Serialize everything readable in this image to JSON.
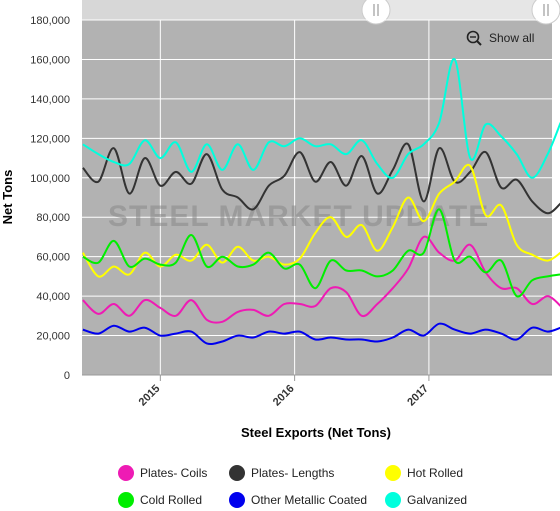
{
  "chart_data": {
    "type": "line",
    "xlabel": "Steel Exports (Net Tons)",
    "ylabel": "Net Tons",
    "ylim": [
      0,
      180000
    ],
    "yticks": [
      0,
      20000,
      40000,
      60000,
      80000,
      100000,
      120000,
      140000,
      160000,
      180000
    ],
    "yticklabels": [
      "0",
      "20,000",
      "40,000",
      "60,000",
      "80,000",
      "100,000",
      "120,000",
      "140,000",
      "160,000",
      "180,000"
    ],
    "xlim": [
      "2014-06",
      "2017-12"
    ],
    "xticks": [
      "2015",
      "2016",
      "2017"
    ],
    "xtick_positions": [
      "2015-01",
      "2016-01",
      "2017-01"
    ],
    "grid": true,
    "legend_position": "bottom",
    "show_all_label": "Show all",
    "watermark": "STEEL MARKET UPDATE",
    "weeks": [
      "2014-W23",
      "2014-W29",
      "2014-W35",
      "2014-W41",
      "2014-W47",
      "2015-W01",
      "2015-W07",
      "2015-W13",
      "2015-W19",
      "2015-W25",
      "2015-W31",
      "2015-W37",
      "2015-W43",
      "2015-W49",
      "2016-W03",
      "2016-W09",
      "2016-W15",
      "2016-W21",
      "2016-W27",
      "2016-W33",
      "2016-W39",
      "2016-W45",
      "2016-W51",
      "2017-W05",
      "2017-W11",
      "2017-W17",
      "2017-W23",
      "2017-W29",
      "2017-W35",
      "2017-W41",
      "2017-W47",
      "2017-W52"
    ],
    "series": [
      {
        "name": "Plates- Coils",
        "color": "#ee1bb4",
        "values": [
          38000,
          31000,
          36000,
          30000,
          38000,
          34000,
          30000,
          38000,
          28000,
          27000,
          32000,
          33000,
          30000,
          36000,
          36000,
          35000,
          44000,
          42000,
          30000,
          36000,
          44000,
          54000,
          70000,
          62000,
          58000,
          66000,
          52000,
          44000,
          44000,
          36000,
          40000,
          35000
        ]
      },
      {
        "name": "Plates- Lengths",
        "color": "#333333",
        "values": [
          105000,
          98000,
          115000,
          92000,
          110000,
          96000,
          103000,
          97000,
          112000,
          94000,
          90000,
          84000,
          96000,
          101000,
          113000,
          98000,
          108000,
          96000,
          111000,
          92000,
          104000,
          117000,
          88000,
          115000,
          98000,
          103000,
          113000,
          95000,
          99000,
          88000,
          82000,
          87000
        ]
      },
      {
        "name": "Hot Rolled",
        "color": "#ffff00",
        "values": [
          62000,
          50000,
          55000,
          51000,
          62000,
          55000,
          61000,
          58000,
          66000,
          57000,
          65000,
          58000,
          60000,
          56000,
          59000,
          72000,
          80000,
          70000,
          76000,
          63000,
          75000,
          90000,
          78000,
          92000,
          98000,
          106000,
          81000,
          86000,
          66000,
          61000,
          58000,
          62000
        ]
      },
      {
        "name": "Cold Rolled",
        "color": "#00ee00",
        "values": [
          60000,
          57000,
          68000,
          55000,
          59000,
          56000,
          57000,
          71000,
          55000,
          60000,
          55000,
          56000,
          62000,
          54000,
          56000,
          44000,
          58000,
          53000,
          53000,
          50000,
          53000,
          63000,
          62000,
          84000,
          58000,
          60000,
          52000,
          58000,
          40000,
          48000,
          50000,
          51000
        ]
      },
      {
        "name": "Other Metallic Coated",
        "color": "#0000ee",
        "values": [
          23000,
          21000,
          25000,
          22000,
          24000,
          20000,
          21000,
          22000,
          16000,
          17000,
          20000,
          19000,
          22000,
          21000,
          22000,
          18000,
          19000,
          18000,
          18000,
          17000,
          19000,
          23000,
          20000,
          26000,
          23000,
          21000,
          23000,
          21000,
          18000,
          24000,
          22000,
          24000
        ]
      },
      {
        "name": "Galvanized",
        "color": "#00ffdd",
        "values": [
          117000,
          112000,
          108000,
          107000,
          119000,
          110000,
          118000,
          103000,
          117000,
          104000,
          117000,
          104000,
          118000,
          116000,
          120000,
          116000,
          117000,
          112000,
          119000,
          107000,
          100000,
          112000,
          117000,
          128000,
          160000,
          110000,
          127000,
          121000,
          112000,
          100000,
          112000,
          128000
        ]
      }
    ]
  }
}
